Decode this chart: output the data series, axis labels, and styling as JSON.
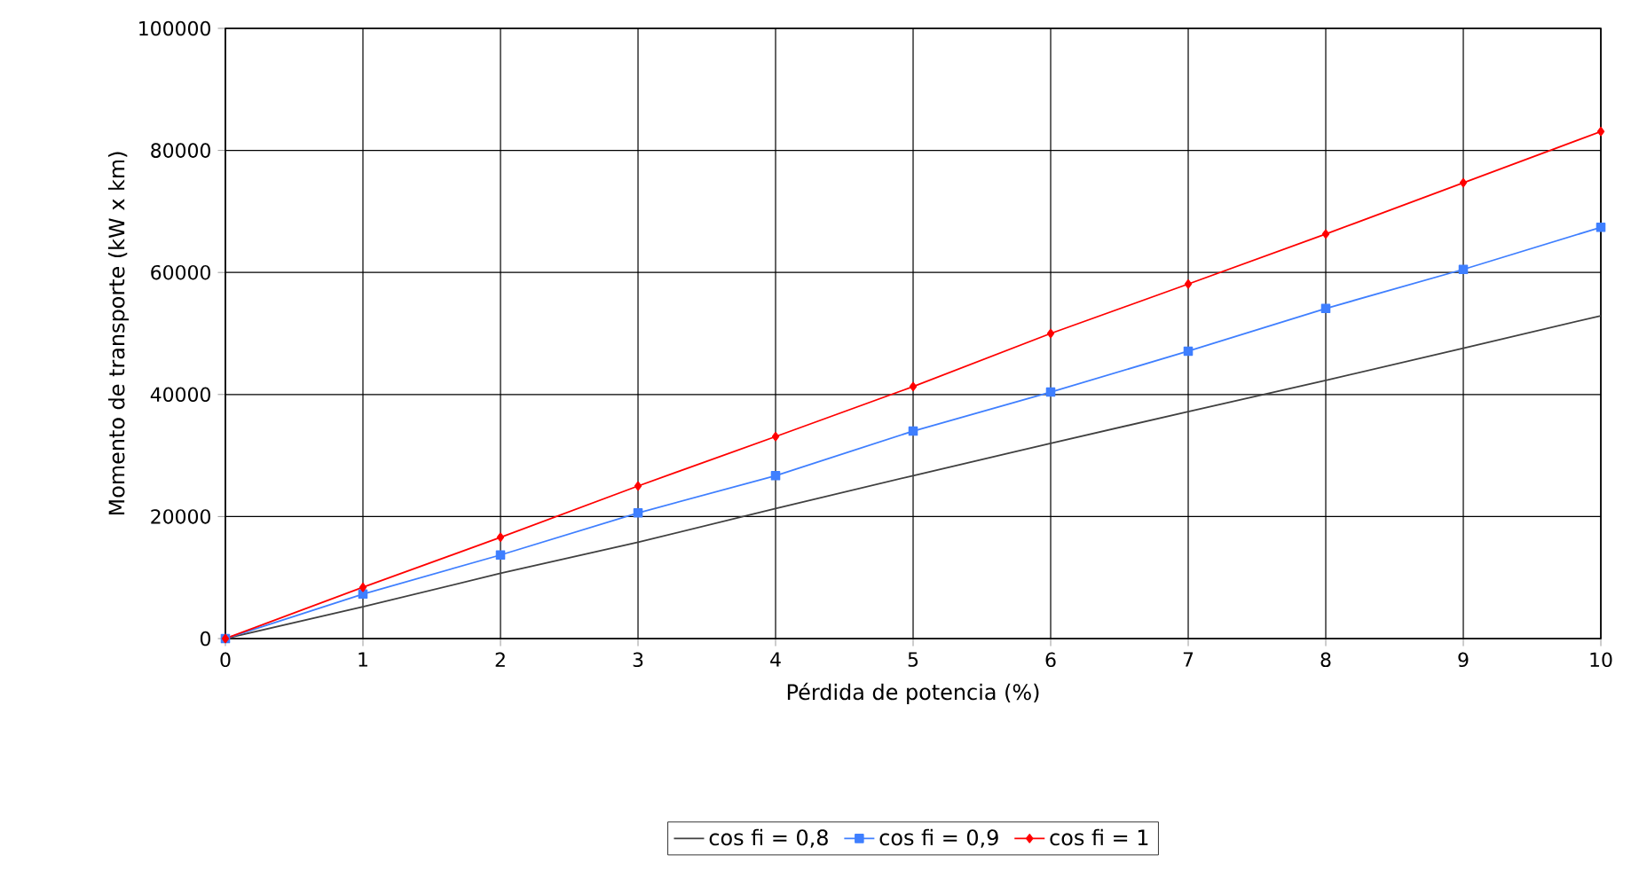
{
  "chart_data": {
    "type": "line",
    "xlabel": "Pérdida de potencia (%)",
    "ylabel": "Momento de transporte (kW x km)",
    "x": [
      0,
      1,
      2,
      3,
      4,
      5,
      6,
      7,
      8,
      9,
      10
    ],
    "xlim": [
      0,
      10
    ],
    "xticks": [
      0,
      1,
      2,
      3,
      4,
      5,
      6,
      7,
      8,
      9,
      10
    ],
    "ylim": [
      0,
      100000
    ],
    "yticks": [
      0,
      20000,
      40000,
      60000,
      80000,
      100000
    ],
    "grid": true,
    "legend": "bottom",
    "line_style": "solid",
    "series": [
      {
        "name": "cos fi = 0,8",
        "color": "#404040",
        "marker": "none",
        "values": [
          0,
          5200,
          10700,
          15800,
          21300,
          26700,
          32000,
          37200,
          42300,
          47600,
          52900
        ]
      },
      {
        "name": "cos fi = 0,9",
        "color": "#3f7fff",
        "marker": "square",
        "values": [
          0,
          7300,
          13700,
          20600,
          26700,
          34000,
          40400,
          47100,
          54100,
          60500,
          67400
        ]
      },
      {
        "name": "cos fi = 1",
        "color": "#ff0000",
        "marker": "diamond",
        "values": [
          0,
          8400,
          16600,
          25000,
          33100,
          41300,
          50000,
          58100,
          66300,
          74700,
          83100
        ]
      }
    ]
  }
}
